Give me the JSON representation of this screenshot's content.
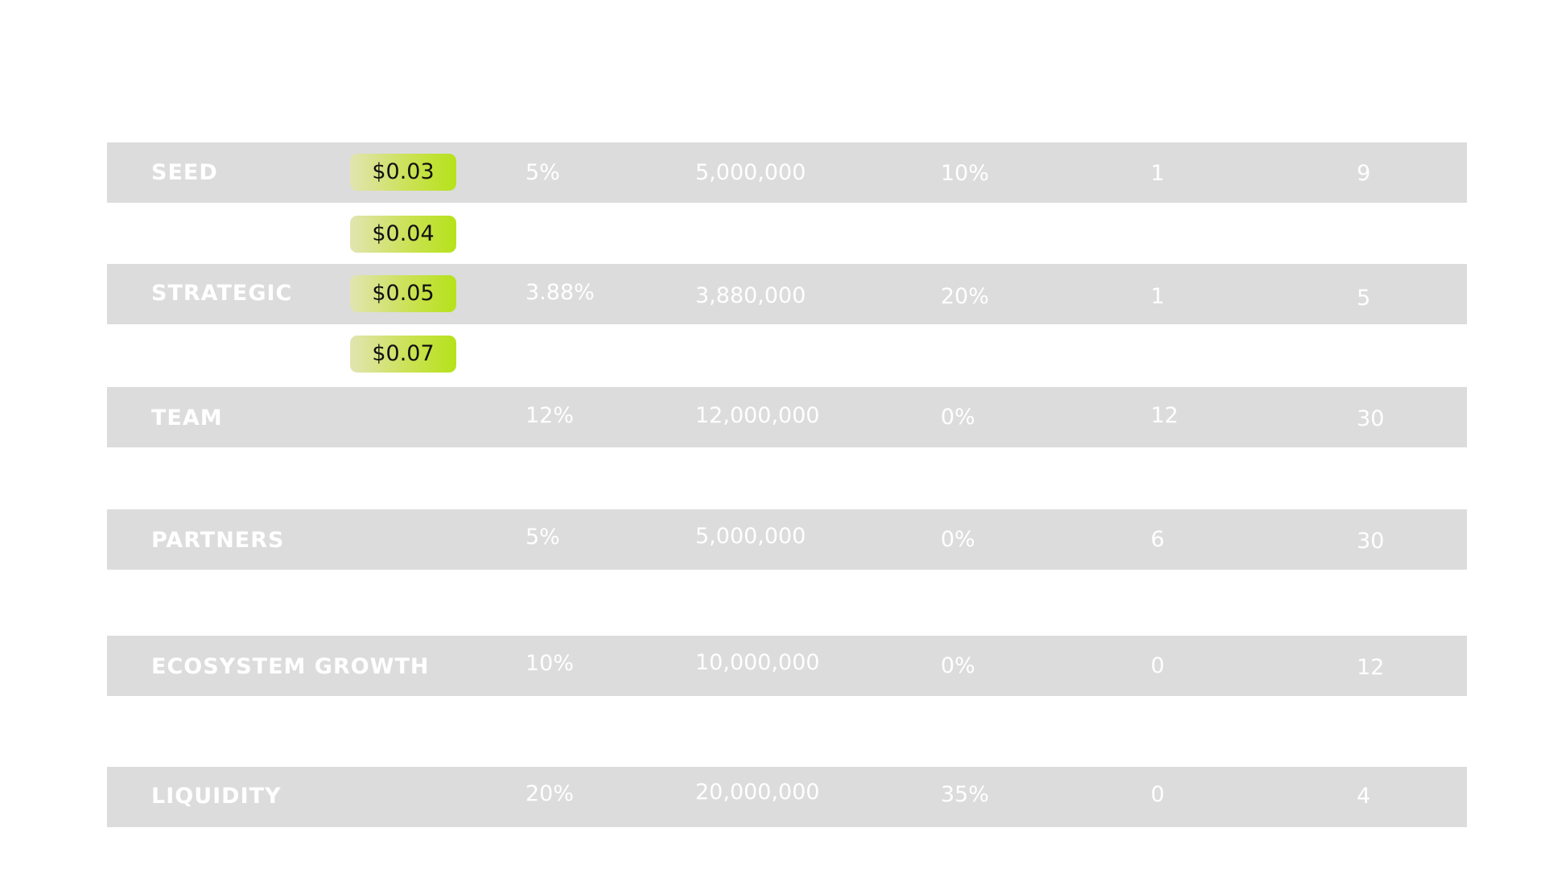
{
  "prices": [
    "$0.03",
    "$0.04",
    "$0.05",
    "$0.07"
  ],
  "rows": [
    {
      "name": "SEED",
      "percent": "5%",
      "tokens": "5,000,000",
      "tge": "10%",
      "cliff": "1",
      "vesting": "9"
    },
    {
      "name": "STRATEGIC",
      "percent": "3.88%",
      "tokens": "3,880,000",
      "tge": "20%",
      "cliff": "1",
      "vesting": "5"
    },
    {
      "name": "TEAM",
      "percent": "12%",
      "tokens": "12,000,000",
      "tge": "0%",
      "cliff": "12",
      "vesting": "30"
    },
    {
      "name": "PARTNERS",
      "percent": "5%",
      "tokens": "5,000,000",
      "tge": "0%",
      "cliff": "6",
      "vesting": "30"
    },
    {
      "name": "ECOSYSTEM GROWTH",
      "percent": "10%",
      "tokens": "10,000,000",
      "tge": "0%",
      "cliff": "0",
      "vesting": "12"
    },
    {
      "name": "LIQUIDITY",
      "percent": "20%",
      "tokens": "20,000,000",
      "tge": "35%",
      "cliff": "0",
      "vesting": "4"
    }
  ]
}
